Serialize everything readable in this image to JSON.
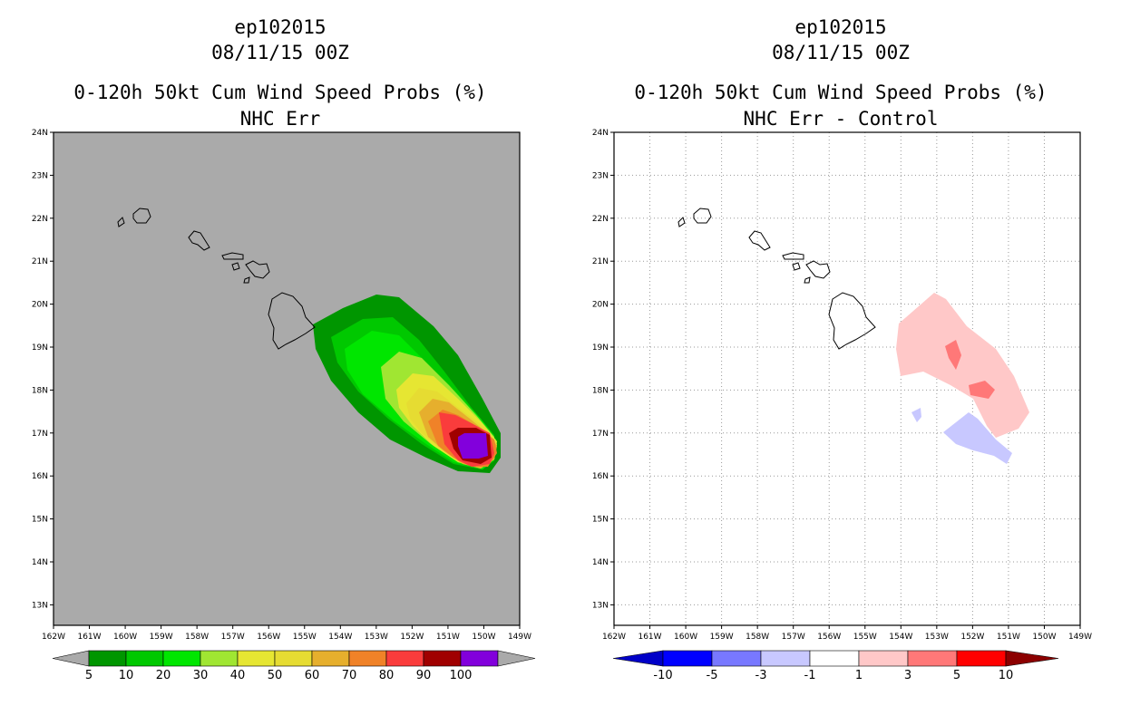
{
  "left_panel": {
    "storm_id": "ep102015",
    "date": "08/11/15 00Z",
    "title": "0-120h 50kt Cum Wind Speed Probs (%)",
    "subtitle": "NHC Err",
    "colorbar": {
      "labels": [
        "5",
        "10",
        "20",
        "30",
        "40",
        "50",
        "60",
        "70",
        "80",
        "90",
        "100"
      ],
      "colors": [
        "#009600",
        "#00c800",
        "#00e600",
        "#a0e632",
        "#e6e632",
        "#e6dc32",
        "#e6af2d",
        "#f08228",
        "#fa3c3c",
        "#a00000",
        "#8200dc"
      ]
    }
  },
  "right_panel": {
    "storm_id": "ep102015",
    "date": "08/11/15 00Z",
    "title": "0-120h 50kt Cum Wind Speed Probs (%)",
    "subtitle": "NHC Err - Control",
    "colorbar": {
      "labels": [
        "-10",
        "-5",
        "-3",
        "-1",
        "1",
        "3",
        "5",
        "10"
      ],
      "colors": [
        "#0000c8",
        "#0000ff",
        "#7878ff",
        "#c8c8ff",
        "#ffffff",
        "#ffc8c8",
        "#ff7878",
        "#ff0000",
        "#8c0000"
      ]
    }
  },
  "map": {
    "lon_labels": [
      "162W",
      "161W",
      "160W",
      "159W",
      "158W",
      "157W",
      "156W",
      "155W",
      "154W",
      "153W",
      "152W",
      "151W",
      "150W",
      "149W"
    ],
    "lat_labels": [
      "24N",
      "23N",
      "22N",
      "21N",
      "20N",
      "19N",
      "18N",
      "17N",
      "16N",
      "15N",
      "14N",
      "13N"
    ],
    "background_color_left": "#aaaaaa"
  }
}
